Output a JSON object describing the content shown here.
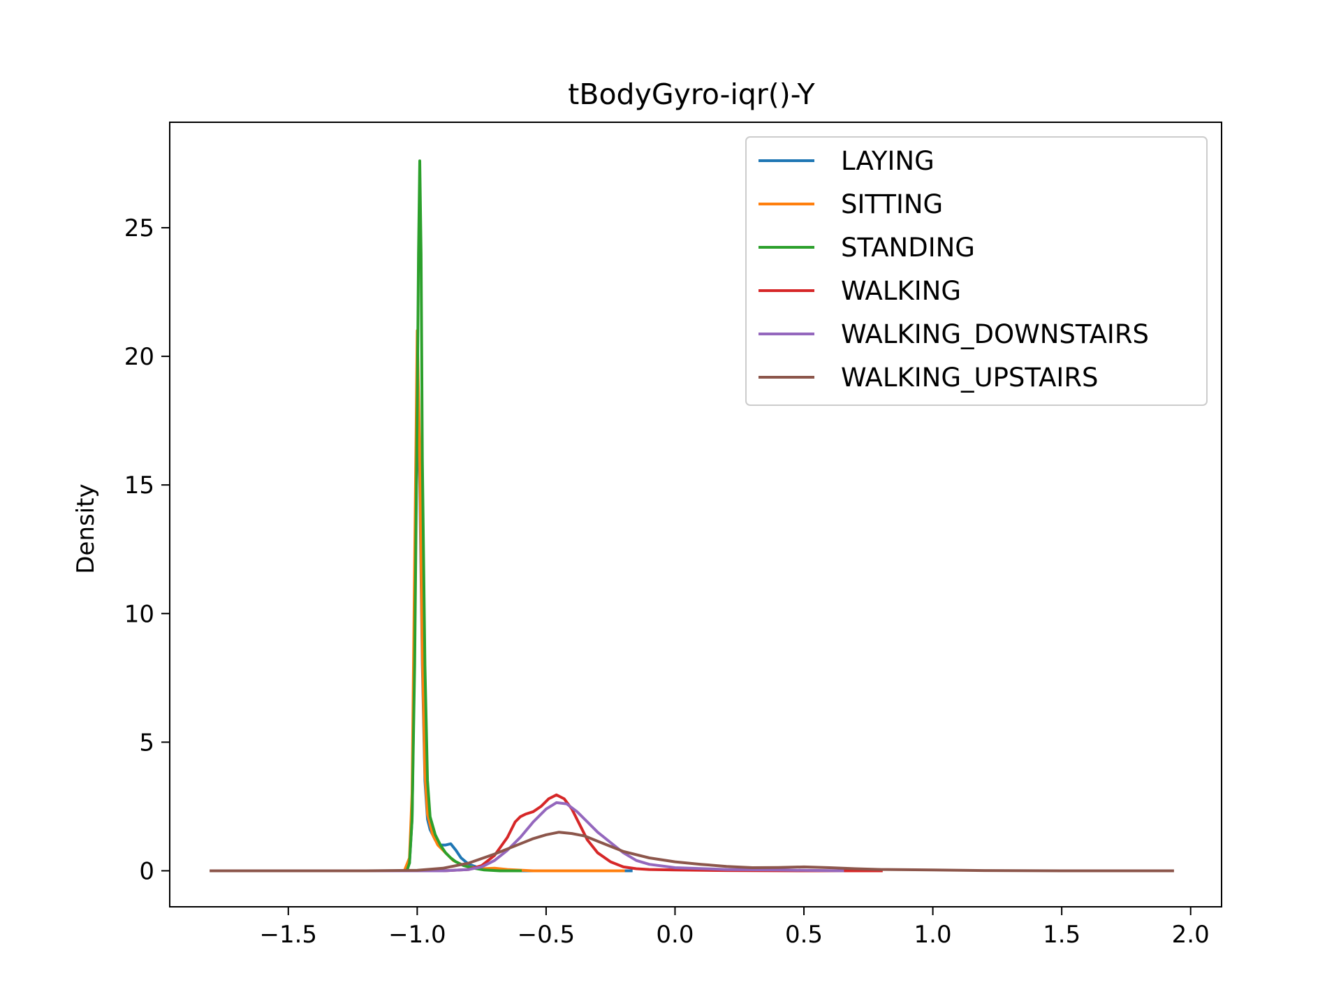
{
  "chart_data": {
    "type": "line",
    "title": "tBodyGyro-iqr()-Y",
    "xlabel": "",
    "ylabel": "Density",
    "xlim": [
      -1.96,
      2.12
    ],
    "ylim": [
      -1.4,
      29.1
    ],
    "xticks": [
      -1.5,
      -1.0,
      -0.5,
      0.0,
      0.5,
      1.0,
      1.5,
      2.0
    ],
    "xtick_labels": [
      "−1.5",
      "−1.0",
      "−0.5",
      "0.0",
      "0.5",
      "1.0",
      "1.5",
      "2.0"
    ],
    "yticks": [
      0,
      5,
      10,
      15,
      20,
      25
    ],
    "ytick_labels": [
      "0",
      "5",
      "10",
      "15",
      "20",
      "25"
    ],
    "grid": false,
    "legend_position": "top-right",
    "series": [
      {
        "name": "LAYING",
        "color": "#1f77b4",
        "points": [
          [
            -1.3,
            0
          ],
          [
            -1.1,
            0
          ],
          [
            -1.05,
            0
          ],
          [
            -1.03,
            0.3
          ],
          [
            -1.02,
            2.0
          ],
          [
            -1.01,
            9.0
          ],
          [
            -1.0,
            19.0
          ],
          [
            -0.99,
            15.0
          ],
          [
            -0.98,
            8.0
          ],
          [
            -0.97,
            3.5
          ],
          [
            -0.96,
            2.0
          ],
          [
            -0.95,
            1.6
          ],
          [
            -0.93,
            1.2
          ],
          [
            -0.91,
            1.0
          ],
          [
            -0.89,
            1.0
          ],
          [
            -0.87,
            1.05
          ],
          [
            -0.85,
            0.8
          ],
          [
            -0.83,
            0.5
          ],
          [
            -0.8,
            0.25
          ],
          [
            -0.75,
            0.08
          ],
          [
            -0.7,
            0.02
          ],
          [
            -0.6,
            0
          ],
          [
            -0.4,
            0
          ],
          [
            -0.17,
            0
          ]
        ]
      },
      {
        "name": "SITTING",
        "color": "#ff7f0e",
        "points": [
          [
            -1.25,
            0
          ],
          [
            -1.1,
            0
          ],
          [
            -1.05,
            0
          ],
          [
            -1.03,
            0.5
          ],
          [
            -1.02,
            3.0
          ],
          [
            -1.01,
            12.0
          ],
          [
            -1.0,
            21.0
          ],
          [
            -0.99,
            16.0
          ],
          [
            -0.98,
            8.5
          ],
          [
            -0.97,
            3.8
          ],
          [
            -0.96,
            2.2
          ],
          [
            -0.94,
            1.4
          ],
          [
            -0.92,
            1.0
          ],
          [
            -0.9,
            0.8
          ],
          [
            -0.88,
            0.6
          ],
          [
            -0.86,
            0.4
          ],
          [
            -0.83,
            0.25
          ],
          [
            -0.8,
            0.15
          ],
          [
            -0.75,
            0.08
          ],
          [
            -0.7,
            0.1
          ],
          [
            -0.65,
            0.05
          ],
          [
            -0.55,
            0
          ],
          [
            -0.4,
            0
          ],
          [
            -0.2,
            0
          ]
        ]
      },
      {
        "name": "STANDING",
        "color": "#2ca02c",
        "points": [
          [
            -1.25,
            0
          ],
          [
            -1.1,
            0
          ],
          [
            -1.04,
            0
          ],
          [
            -1.03,
            0.3
          ],
          [
            -1.02,
            2.0
          ],
          [
            -1.01,
            8.0
          ],
          [
            -1.0,
            18.0
          ],
          [
            -0.995,
            24.0
          ],
          [
            -0.99,
            27.6
          ],
          [
            -0.985,
            24.0
          ],
          [
            -0.98,
            16.0
          ],
          [
            -0.97,
            8.0
          ],
          [
            -0.96,
            3.5
          ],
          [
            -0.95,
            2.1
          ],
          [
            -0.93,
            1.4
          ],
          [
            -0.91,
            1.0
          ],
          [
            -0.89,
            0.7
          ],
          [
            -0.87,
            0.5
          ],
          [
            -0.85,
            0.35
          ],
          [
            -0.82,
            0.2
          ],
          [
            -0.78,
            0.1
          ],
          [
            -0.74,
            0.03
          ],
          [
            -0.68,
            0
          ],
          [
            -0.6,
            0
          ]
        ]
      },
      {
        "name": "WALKING",
        "color": "#d62728",
        "points": [
          [
            -1.2,
            0
          ],
          [
            -1.0,
            0
          ],
          [
            -0.9,
            0
          ],
          [
            -0.8,
            0.05
          ],
          [
            -0.75,
            0.2
          ],
          [
            -0.7,
            0.6
          ],
          [
            -0.65,
            1.3
          ],
          [
            -0.62,
            1.9
          ],
          [
            -0.6,
            2.1
          ],
          [
            -0.58,
            2.2
          ],
          [
            -0.55,
            2.3
          ],
          [
            -0.52,
            2.5
          ],
          [
            -0.49,
            2.8
          ],
          [
            -0.46,
            2.95
          ],
          [
            -0.43,
            2.8
          ],
          [
            -0.4,
            2.4
          ],
          [
            -0.37,
            1.8
          ],
          [
            -0.34,
            1.2
          ],
          [
            -0.3,
            0.7
          ],
          [
            -0.25,
            0.35
          ],
          [
            -0.2,
            0.15
          ],
          [
            -0.15,
            0.08
          ],
          [
            -0.1,
            0.05
          ],
          [
            0.0,
            0.03
          ],
          [
            0.2,
            0.01
          ],
          [
            0.5,
            0
          ],
          [
            0.8,
            0
          ]
        ]
      },
      {
        "name": "WALKING_DOWNSTAIRS",
        "color": "#9467bd",
        "points": [
          [
            -1.2,
            0
          ],
          [
            -1.0,
            0
          ],
          [
            -0.9,
            0
          ],
          [
            -0.8,
            0.05
          ],
          [
            -0.75,
            0.15
          ],
          [
            -0.7,
            0.4
          ],
          [
            -0.65,
            0.8
          ],
          [
            -0.6,
            1.3
          ],
          [
            -0.55,
            1.9
          ],
          [
            -0.5,
            2.4
          ],
          [
            -0.46,
            2.65
          ],
          [
            -0.42,
            2.6
          ],
          [
            -0.38,
            2.3
          ],
          [
            -0.34,
            1.9
          ],
          [
            -0.3,
            1.5
          ],
          [
            -0.25,
            1.1
          ],
          [
            -0.2,
            0.7
          ],
          [
            -0.15,
            0.4
          ],
          [
            -0.1,
            0.25
          ],
          [
            0.0,
            0.12
          ],
          [
            0.2,
            0.05
          ],
          [
            0.4,
            0.03
          ],
          [
            0.65,
            0
          ]
        ]
      },
      {
        "name": "WALKING_UPSTAIRS",
        "color": "#8c564b",
        "points": [
          [
            -1.8,
            0
          ],
          [
            -1.5,
            0
          ],
          [
            -1.2,
            0
          ],
          [
            -1.0,
            0.02
          ],
          [
            -0.9,
            0.1
          ],
          [
            -0.8,
            0.3
          ],
          [
            -0.7,
            0.65
          ],
          [
            -0.6,
            1.05
          ],
          [
            -0.55,
            1.25
          ],
          [
            -0.5,
            1.4
          ],
          [
            -0.45,
            1.5
          ],
          [
            -0.4,
            1.45
          ],
          [
            -0.35,
            1.35
          ],
          [
            -0.3,
            1.15
          ],
          [
            -0.25,
            0.95
          ],
          [
            -0.2,
            0.75
          ],
          [
            -0.1,
            0.5
          ],
          [
            0.0,
            0.35
          ],
          [
            0.1,
            0.25
          ],
          [
            0.2,
            0.17
          ],
          [
            0.3,
            0.12
          ],
          [
            0.4,
            0.13
          ],
          [
            0.5,
            0.15
          ],
          [
            0.6,
            0.12
          ],
          [
            0.7,
            0.08
          ],
          [
            0.8,
            0.05
          ],
          [
            1.0,
            0.03
          ],
          [
            1.2,
            0.01
          ],
          [
            1.5,
            0
          ],
          [
            1.93,
            0
          ]
        ]
      }
    ]
  }
}
